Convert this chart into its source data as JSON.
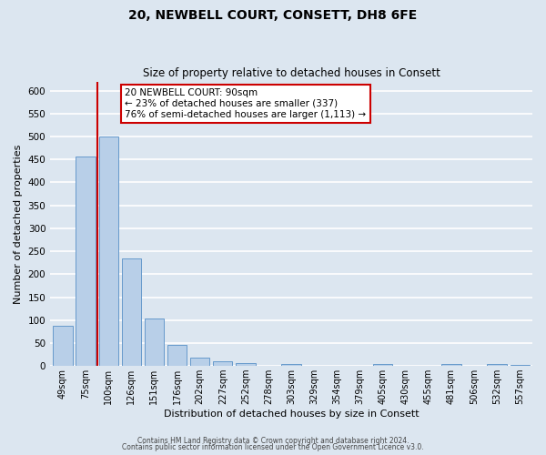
{
  "title": "20, NEWBELL COURT, CONSETT, DH8 6FE",
  "subtitle": "Size of property relative to detached houses in Consett",
  "xlabel": "Distribution of detached houses by size in Consett",
  "ylabel": "Number of detached properties",
  "bar_labels": [
    "49sqm",
    "75sqm",
    "100sqm",
    "126sqm",
    "151sqm",
    "176sqm",
    "202sqm",
    "227sqm",
    "252sqm",
    "278sqm",
    "303sqm",
    "329sqm",
    "354sqm",
    "379sqm",
    "405sqm",
    "430sqm",
    "455sqm",
    "481sqm",
    "506sqm",
    "532sqm",
    "557sqm"
  ],
  "bar_values": [
    88,
    457,
    500,
    235,
    103,
    46,
    19,
    11,
    7,
    0,
    5,
    0,
    0,
    0,
    5,
    0,
    0,
    5,
    0,
    5,
    3
  ],
  "bar_color": "#b8cfe8",
  "bar_edge_color": "#6699cc",
  "figure_bg": "#dce6f0",
  "axes_bg": "#dce6f0",
  "grid_color": "#ffffff",
  "ylim_max": 620,
  "yticks": [
    0,
    50,
    100,
    150,
    200,
    250,
    300,
    350,
    400,
    450,
    500,
    550,
    600
  ],
  "red_line_index": 2,
  "annotation_title": "20 NEWBELL COURT: 90sqm",
  "annotation_line1": "← 23% of detached houses are smaller (337)",
  "annotation_line2": "76% of semi-detached houses are larger (1,113) →",
  "annotation_box_fc": "#ffffff",
  "annotation_box_ec": "#cc0000",
  "footnote1": "Contains HM Land Registry data © Crown copyright and database right 2024.",
  "footnote2": "Contains public sector information licensed under the Open Government Licence v3.0."
}
